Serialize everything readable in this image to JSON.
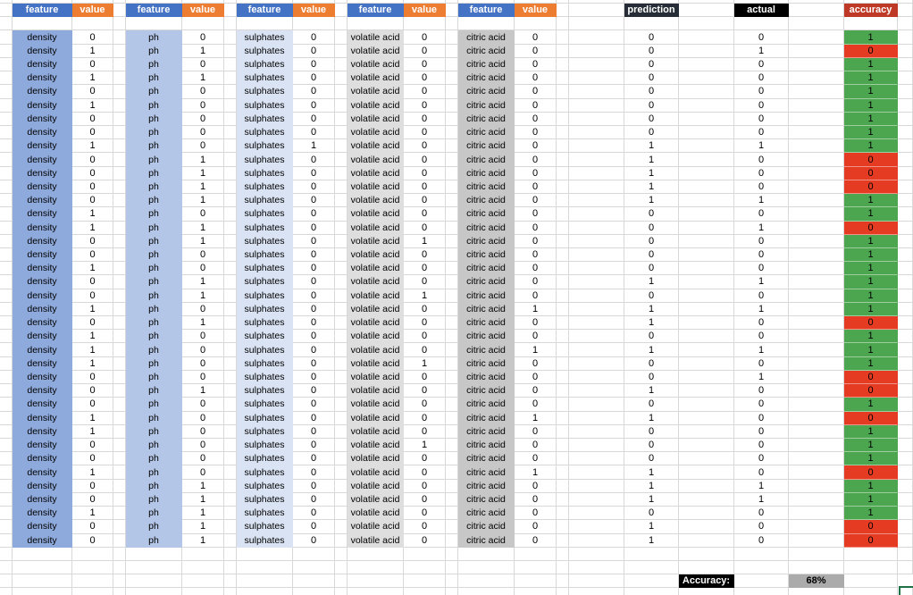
{
  "sheet": {
    "header": {
      "feature_label": "feature",
      "value_label": "value",
      "prediction_label": "prediction",
      "actual_label": "actual",
      "accuracy_label": "accuracy",
      "feature_header_color": "#4472C4",
      "value_header_color": "#ED7D31",
      "prediction_header_color": "#262D36",
      "actual_header_color": "#000000",
      "accuracy_header_color": "#BE3A26"
    },
    "feature_columns": [
      {
        "name": "density",
        "fill": "#8EA9DB"
      },
      {
        "name": "ph",
        "fill": "#B4C6E7"
      },
      {
        "name": "sulphates",
        "fill": "#DAE3F3"
      },
      {
        "name": "volatile acid",
        "fill": "#DEDEDE"
      },
      {
        "name": "citric acid",
        "fill": "#C7C7C7"
      }
    ],
    "rows": [
      {
        "values": [
          0,
          0,
          0,
          0,
          0
        ],
        "prediction": 0,
        "actual": 0,
        "accuracy": 1
      },
      {
        "values": [
          1,
          1,
          0,
          0,
          0
        ],
        "prediction": 0,
        "actual": 1,
        "accuracy": 0
      },
      {
        "values": [
          0,
          0,
          0,
          0,
          0
        ],
        "prediction": 0,
        "actual": 0,
        "accuracy": 1
      },
      {
        "values": [
          1,
          1,
          0,
          0,
          0
        ],
        "prediction": 0,
        "actual": 0,
        "accuracy": 1
      },
      {
        "values": [
          0,
          0,
          0,
          0,
          0
        ],
        "prediction": 0,
        "actual": 0,
        "accuracy": 1
      },
      {
        "values": [
          1,
          0,
          0,
          0,
          0
        ],
        "prediction": 0,
        "actual": 0,
        "accuracy": 1
      },
      {
        "values": [
          0,
          0,
          0,
          0,
          0
        ],
        "prediction": 0,
        "actual": 0,
        "accuracy": 1
      },
      {
        "values": [
          0,
          0,
          0,
          0,
          0
        ],
        "prediction": 0,
        "actual": 0,
        "accuracy": 1
      },
      {
        "values": [
          1,
          0,
          1,
          0,
          0
        ],
        "prediction": 1,
        "actual": 1,
        "accuracy": 1
      },
      {
        "values": [
          0,
          1,
          0,
          0,
          0
        ],
        "prediction": 1,
        "actual": 0,
        "accuracy": 0
      },
      {
        "values": [
          0,
          1,
          0,
          0,
          0
        ],
        "prediction": 1,
        "actual": 0,
        "accuracy": 0
      },
      {
        "values": [
          0,
          1,
          0,
          0,
          0
        ],
        "prediction": 1,
        "actual": 0,
        "accuracy": 0
      },
      {
        "values": [
          0,
          1,
          0,
          0,
          0
        ],
        "prediction": 1,
        "actual": 1,
        "accuracy": 1
      },
      {
        "values": [
          1,
          0,
          0,
          0,
          0
        ],
        "prediction": 0,
        "actual": 0,
        "accuracy": 1
      },
      {
        "values": [
          1,
          1,
          0,
          0,
          0
        ],
        "prediction": 0,
        "actual": 1,
        "accuracy": 0
      },
      {
        "values": [
          0,
          1,
          0,
          1,
          0
        ],
        "prediction": 0,
        "actual": 0,
        "accuracy": 1
      },
      {
        "values": [
          0,
          0,
          0,
          0,
          0
        ],
        "prediction": 0,
        "actual": 0,
        "accuracy": 1
      },
      {
        "values": [
          1,
          0,
          0,
          0,
          0
        ],
        "prediction": 0,
        "actual": 0,
        "accuracy": 1
      },
      {
        "values": [
          0,
          1,
          0,
          0,
          0
        ],
        "prediction": 1,
        "actual": 1,
        "accuracy": 1
      },
      {
        "values": [
          0,
          1,
          0,
          1,
          0
        ],
        "prediction": 0,
        "actual": 0,
        "accuracy": 1
      },
      {
        "values": [
          1,
          0,
          0,
          0,
          1
        ],
        "prediction": 1,
        "actual": 1,
        "accuracy": 1
      },
      {
        "values": [
          0,
          1,
          0,
          0,
          0
        ],
        "prediction": 1,
        "actual": 0,
        "accuracy": 0
      },
      {
        "values": [
          1,
          0,
          0,
          0,
          0
        ],
        "prediction": 0,
        "actual": 0,
        "accuracy": 1
      },
      {
        "values": [
          1,
          0,
          0,
          0,
          1
        ],
        "prediction": 1,
        "actual": 1,
        "accuracy": 1
      },
      {
        "values": [
          1,
          0,
          0,
          1,
          0
        ],
        "prediction": 0,
        "actual": 0,
        "accuracy": 1
      },
      {
        "values": [
          0,
          0,
          0,
          0,
          0
        ],
        "prediction": 0,
        "actual": 1,
        "accuracy": 0
      },
      {
        "values": [
          0,
          1,
          0,
          0,
          0
        ],
        "prediction": 1,
        "actual": 0,
        "accuracy": 0
      },
      {
        "values": [
          0,
          0,
          0,
          0,
          0
        ],
        "prediction": 0,
        "actual": 0,
        "accuracy": 1
      },
      {
        "values": [
          1,
          0,
          0,
          0,
          1
        ],
        "prediction": 1,
        "actual": 0,
        "accuracy": 0
      },
      {
        "values": [
          1,
          0,
          0,
          0,
          0
        ],
        "prediction": 0,
        "actual": 0,
        "accuracy": 1
      },
      {
        "values": [
          0,
          0,
          0,
          1,
          0
        ],
        "prediction": 0,
        "actual": 0,
        "accuracy": 1
      },
      {
        "values": [
          0,
          0,
          0,
          0,
          0
        ],
        "prediction": 0,
        "actual": 0,
        "accuracy": 1
      },
      {
        "values": [
          1,
          0,
          0,
          0,
          1
        ],
        "prediction": 1,
        "actual": 0,
        "accuracy": 0
      },
      {
        "values": [
          0,
          1,
          0,
          0,
          0
        ],
        "prediction": 1,
        "actual": 1,
        "accuracy": 1
      },
      {
        "values": [
          0,
          1,
          0,
          0,
          0
        ],
        "prediction": 1,
        "actual": 1,
        "accuracy": 1
      },
      {
        "values": [
          1,
          1,
          0,
          0,
          0
        ],
        "prediction": 0,
        "actual": 0,
        "accuracy": 1
      },
      {
        "values": [
          0,
          1,
          0,
          0,
          0
        ],
        "prediction": 1,
        "actual": 0,
        "accuracy": 0
      },
      {
        "values": [
          0,
          1,
          0,
          0,
          0
        ],
        "prediction": 1,
        "actual": 0,
        "accuracy": 0
      }
    ],
    "footer": {
      "accuracy_label": "Accuracy:",
      "accuracy_value": "68%"
    },
    "colors": {
      "correct": "#4BA64F",
      "incorrect": "#E63B23",
      "gridline": "#D8D8D8",
      "footer_label_bg": "#000000",
      "footer_value_bg": "#ABABAB",
      "selection_border": "#1F7245"
    }
  }
}
